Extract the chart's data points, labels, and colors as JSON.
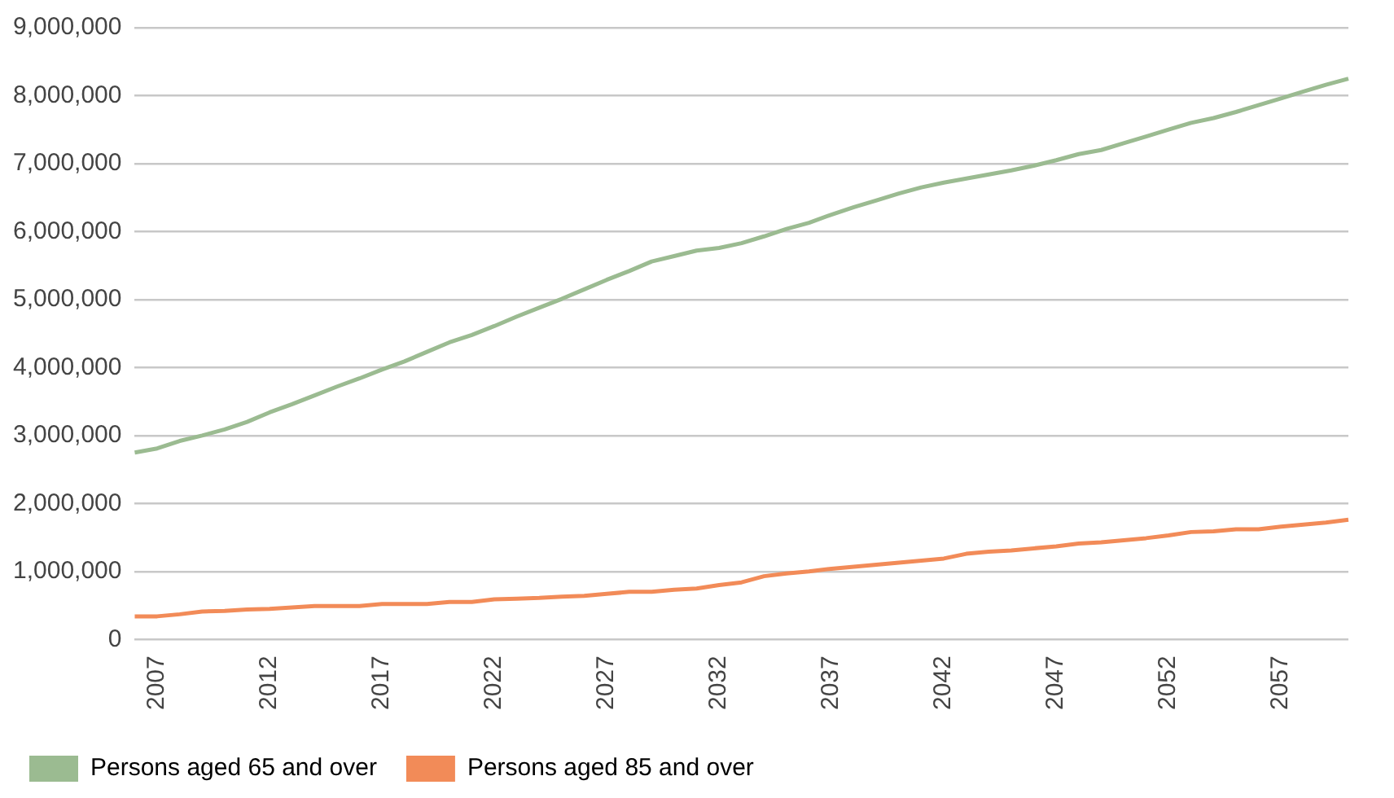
{
  "chart_data": {
    "type": "line",
    "categories": [
      null,
      "2007",
      null,
      null,
      null,
      null,
      "2012",
      null,
      null,
      null,
      null,
      "2017",
      null,
      null,
      null,
      null,
      "2022",
      null,
      null,
      null,
      null,
      "2027",
      null,
      null,
      null,
      null,
      "2032",
      null,
      null,
      null,
      null,
      "2037",
      null,
      null,
      null,
      null,
      "2042",
      null,
      null,
      null,
      null,
      "2047",
      null,
      null,
      null,
      null,
      "2052",
      null,
      null,
      null,
      null,
      "2057",
      null,
      null,
      null
    ],
    "series": [
      {
        "name": "Persons aged 65 and over",
        "color": "#9bbb91",
        "values": [
          2750000,
          2810000,
          2920000,
          3000000,
          3090000,
          3200000,
          3340000,
          3460000,
          3590000,
          3720000,
          3840000,
          3970000,
          4090000,
          4230000,
          4370000,
          4480000,
          4610000,
          4750000,
          4880000,
          5010000,
          5150000,
          5290000,
          5420000,
          5560000,
          5640000,
          5720000,
          5760000,
          5830000,
          5930000,
          6040000,
          6130000,
          6250000,
          6360000,
          6460000,
          6560000,
          6650000,
          6720000,
          6780000,
          6840000,
          6900000,
          6970000,
          7050000,
          7140000,
          7200000,
          7300000,
          7400000,
          7500000,
          7600000,
          7670000,
          7760000,
          7860000,
          7960000,
          8060000,
          8160000,
          8250000
        ]
      },
      {
        "name": "Persons aged 85 and over",
        "color": "#f28b58",
        "values": [
          340000,
          340000,
          370000,
          410000,
          420000,
          440000,
          450000,
          470000,
          490000,
          490000,
          490000,
          520000,
          520000,
          520000,
          550000,
          550000,
          590000,
          600000,
          610000,
          630000,
          640000,
          670000,
          700000,
          700000,
          730000,
          750000,
          800000,
          840000,
          930000,
          970000,
          1000000,
          1040000,
          1070000,
          1100000,
          1130000,
          1160000,
          1190000,
          1260000,
          1290000,
          1310000,
          1340000,
          1370000,
          1410000,
          1430000,
          1460000,
          1490000,
          1530000,
          1580000,
          1590000,
          1620000,
          1620000,
          1660000,
          1690000,
          1720000,
          1760000
        ]
      }
    ],
    "ylim": [
      0,
      9000000
    ],
    "yticks": [
      {
        "value": 0,
        "label": "0"
      },
      {
        "value": 1000000,
        "label": "1,000,000"
      },
      {
        "value": 2000000,
        "label": "2,000,000"
      },
      {
        "value": 3000000,
        "label": "3,000,000"
      },
      {
        "value": 4000000,
        "label": "4,000,000"
      },
      {
        "value": 5000000,
        "label": "5,000,000"
      },
      {
        "value": 6000000,
        "label": "6,000,000"
      },
      {
        "value": 7000000,
        "label": "7,000,000"
      },
      {
        "value": 8000000,
        "label": "8,000,000"
      },
      {
        "value": 9000000,
        "label": "9,000,000"
      }
    ],
    "grid": "y",
    "legend": "bottom left",
    "marker": "none",
    "line_style": "solid"
  }
}
